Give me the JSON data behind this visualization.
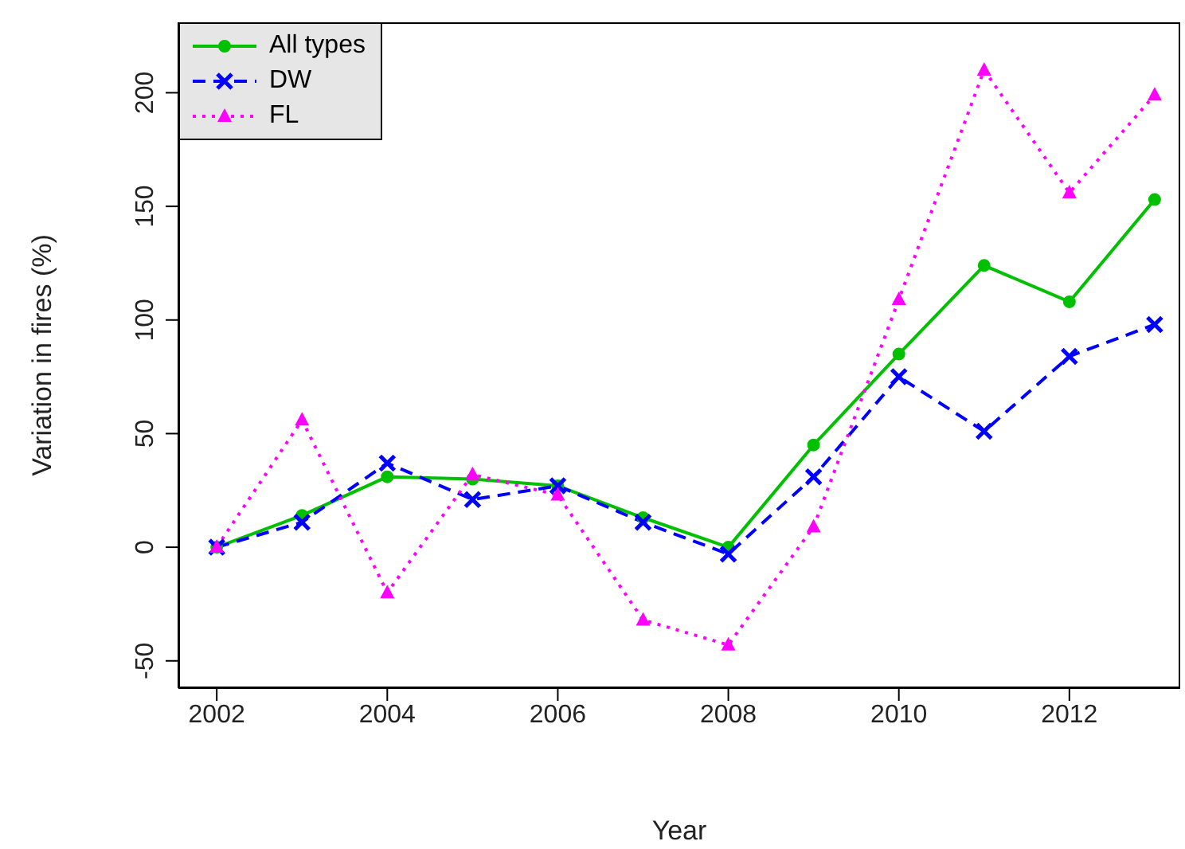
{
  "chart_data": {
    "type": "line",
    "xlabel": "Year",
    "ylabel": "Variation in fires (%)",
    "x": [
      2002,
      2003,
      2004,
      2005,
      2006,
      2007,
      2008,
      2009,
      2010,
      2011,
      2012,
      2013
    ],
    "xlim": [
      2001.55,
      2013.3
    ],
    "xticks": [
      2002,
      2004,
      2006,
      2008,
      2010,
      2012
    ],
    "ylim": [
      -62,
      231
    ],
    "yticks": [
      -50,
      0,
      50,
      100,
      150,
      200
    ],
    "grid": false,
    "legend": "top left",
    "series": [
      {
        "name": "All types",
        "color": "#00c000",
        "marker": "circle",
        "line_style": "solid",
        "values": [
          0,
          14,
          31,
          30,
          27,
          13,
          0,
          45,
          85,
          124,
          108,
          153
        ]
      },
      {
        "name": "DW",
        "color": "#0000ff",
        "marker": "cross",
        "line_style": "dashed",
        "values": [
          0,
          11,
          37,
          21,
          27,
          11,
          -3,
          31,
          75,
          51,
          84,
          98
        ]
      },
      {
        "name": "FL",
        "color": "#ff00ff",
        "marker": "triangle",
        "line_style": "dotted",
        "values": [
          0,
          56,
          -20,
          32,
          23,
          -32,
          -43,
          9,
          109,
          210,
          156,
          199
        ]
      }
    ]
  }
}
